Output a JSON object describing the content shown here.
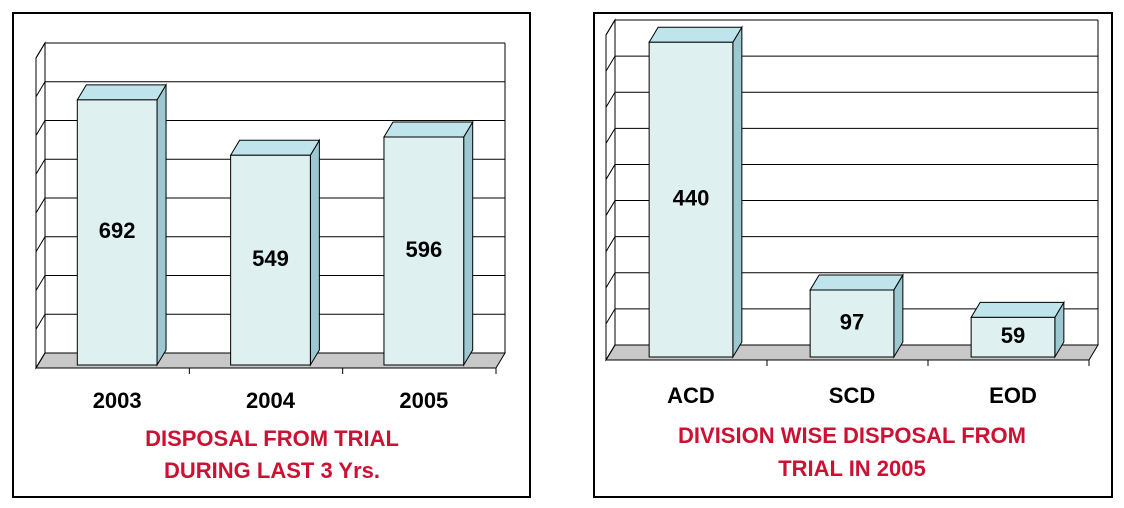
{
  "chart_data": [
    {
      "type": "bar3d",
      "title": [
        "DISPOSAL FROM TRIAL",
        "DURING LAST 3 Yrs."
      ],
      "categories": [
        "2003",
        "2004",
        "2005"
      ],
      "values": [
        692,
        549,
        596
      ],
      "color": "#dff0f0",
      "ylim": [
        0,
        800
      ],
      "yticks": [
        0,
        100,
        200,
        300,
        400,
        500,
        600,
        700,
        800
      ],
      "grid": true
    },
    {
      "type": "bar3d",
      "title": [
        "DIVISION WISE DISPOSAL FROM",
        "TRIAL IN 2005"
      ],
      "categories": [
        "ACD",
        "SCD",
        "EOD"
      ],
      "values": [
        440,
        97,
        59
      ],
      "color": "#dff0f0",
      "ylim": [
        0,
        450
      ],
      "yticks": [
        0,
        50,
        100,
        150,
        200,
        250,
        300,
        350,
        400,
        450
      ],
      "grid": true
    }
  ]
}
